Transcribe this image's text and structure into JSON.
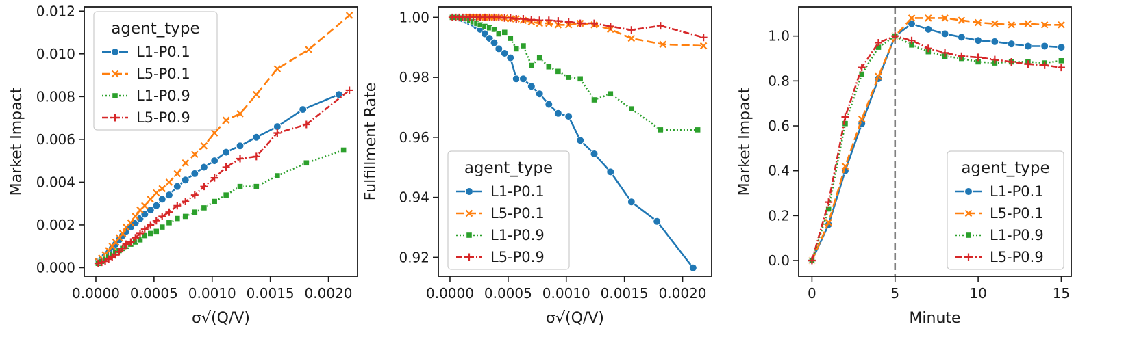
{
  "colors": {
    "L1-P0.1": "#1f77b4",
    "L5-P0.1": "#ff7f0e",
    "L1-P0.9": "#2ca02c",
    "L5-P0.9": "#d62728"
  },
  "chart_data": [
    {
      "type": "line",
      "ylabel": "Market Impact",
      "xlabel": "σ√(Q/V)",
      "xlim": [
        -0.0001,
        0.00225
      ],
      "ylim": [
        -0.0004,
        0.0122
      ],
      "xticks": [
        0.0,
        0.0005,
        0.001,
        0.0015,
        0.002
      ],
      "xtick_labels": [
        "0.0000",
        "0.0005",
        "0.0010",
        "0.0015",
        "0.0020"
      ],
      "yticks": [
        0.0,
        0.002,
        0.004,
        0.006,
        0.008,
        0.01,
        0.012
      ],
      "ytick_labels": [
        "0.000",
        "0.002",
        "0.004",
        "0.006",
        "0.008",
        "0.010",
        "0.012"
      ],
      "legend": {
        "title": "agent_type",
        "position": "upper-left"
      },
      "series": [
        {
          "name": "L1-P0.1",
          "marker": "circle",
          "dash": "solid",
          "x": [
            2e-05,
            5e-05,
            8e-05,
            0.00011,
            0.00014,
            0.00017,
            0.0002,
            0.00023,
            0.00026,
            0.0003,
            0.00034,
            0.00038,
            0.00042,
            0.00047,
            0.00052,
            0.00057,
            0.00063,
            0.0007,
            0.00077,
            0.00085,
            0.00093,
            0.00102,
            0.00112,
            0.00124,
            0.00138,
            0.00156,
            0.00178,
            0.00209
          ],
          "y": [
            0.0003,
            0.0004,
            0.00055,
            0.0007,
            0.0009,
            0.0011,
            0.0013,
            0.0015,
            0.0017,
            0.0019,
            0.0021,
            0.0023,
            0.0025,
            0.0027,
            0.0029,
            0.0032,
            0.0034,
            0.0038,
            0.0041,
            0.0044,
            0.0047,
            0.005,
            0.0054,
            0.0057,
            0.0061,
            0.0066,
            0.0074,
            0.0081
          ]
        },
        {
          "name": "L5-P0.1",
          "marker": "x",
          "dash": "dashed",
          "x": [
            2e-05,
            5e-05,
            8e-05,
            0.00011,
            0.00014,
            0.00017,
            0.0002,
            0.00023,
            0.00026,
            0.0003,
            0.00034,
            0.00038,
            0.00042,
            0.00047,
            0.00052,
            0.00057,
            0.00063,
            0.0007,
            0.00077,
            0.00085,
            0.00093,
            0.00102,
            0.00112,
            0.00124,
            0.00138,
            0.00156,
            0.00183,
            0.00218
          ],
          "y": [
            0.0003,
            0.00045,
            0.0006,
            0.0008,
            0.001,
            0.0012,
            0.0014,
            0.0016,
            0.0019,
            0.0021,
            0.0024,
            0.0027,
            0.0029,
            0.0032,
            0.0035,
            0.0037,
            0.004,
            0.0044,
            0.0049,
            0.0053,
            0.0057,
            0.0063,
            0.0069,
            0.0072,
            0.0081,
            0.0093,
            0.0102,
            0.0118
          ]
        },
        {
          "name": "L1-P0.9",
          "marker": "square",
          "dash": "dotted",
          "x": [
            2e-05,
            5e-05,
            8e-05,
            0.00011,
            0.00014,
            0.00017,
            0.0002,
            0.00023,
            0.00026,
            0.0003,
            0.00034,
            0.00038,
            0.00042,
            0.00047,
            0.00052,
            0.00057,
            0.00063,
            0.0007,
            0.00077,
            0.00085,
            0.00093,
            0.00102,
            0.00112,
            0.00124,
            0.00138,
            0.00156,
            0.00181,
            0.00213
          ],
          "y": [
            0.0002,
            0.0003,
            0.0004,
            0.0005,
            0.0006,
            0.0007,
            0.0008,
            0.0009,
            0.001,
            0.0011,
            0.0012,
            0.0013,
            0.0015,
            0.0016,
            0.0017,
            0.0019,
            0.0021,
            0.0023,
            0.0024,
            0.0026,
            0.0028,
            0.0031,
            0.0034,
            0.0038,
            0.0038,
            0.0043,
            0.0049,
            0.0055
          ]
        },
        {
          "name": "L5-P0.9",
          "marker": "plus",
          "dash": "dashdot",
          "x": [
            2e-05,
            5e-05,
            8e-05,
            0.00011,
            0.00014,
            0.00017,
            0.0002,
            0.00023,
            0.00026,
            0.0003,
            0.00034,
            0.00038,
            0.00042,
            0.00047,
            0.00052,
            0.00057,
            0.00063,
            0.0007,
            0.00077,
            0.00085,
            0.00093,
            0.00102,
            0.00112,
            0.00124,
            0.00138,
            0.00156,
            0.00181,
            0.00218
          ],
          "y": [
            0.0002,
            0.00025,
            0.0003,
            0.0004,
            0.0005,
            0.0006,
            0.00075,
            0.0009,
            0.0011,
            0.0012,
            0.0014,
            0.0016,
            0.0018,
            0.002,
            0.0022,
            0.0024,
            0.0026,
            0.0029,
            0.0031,
            0.0034,
            0.0038,
            0.0042,
            0.0047,
            0.0051,
            0.0052,
            0.0063,
            0.0067,
            0.0083
          ]
        }
      ]
    },
    {
      "type": "line",
      "ylabel": "Fulfillment Rate",
      "xlabel": "σ√(Q/V)",
      "xlim": [
        -0.0001,
        0.00225
      ],
      "ylim": [
        0.9137,
        1.0035
      ],
      "xticks": [
        0.0,
        0.0005,
        0.001,
        0.0015,
        0.002
      ],
      "xtick_labels": [
        "0.0000",
        "0.0005",
        "0.0010",
        "0.0015",
        "0.0020"
      ],
      "yticks": [
        0.92,
        0.94,
        0.96,
        0.98,
        1.0
      ],
      "ytick_labels": [
        "0.92",
        "0.94",
        "0.96",
        "0.98",
        "1.00"
      ],
      "legend": {
        "title": "agent_type",
        "position": "lower-left"
      },
      "series": [
        {
          "name": "L1-P0.1",
          "marker": "circle",
          "dash": "solid",
          "x": [
            2e-05,
            5e-05,
            8e-05,
            0.00011,
            0.00014,
            0.00017,
            0.0002,
            0.00023,
            0.00026,
            0.0003,
            0.00034,
            0.00038,
            0.00042,
            0.00047,
            0.00052,
            0.00057,
            0.00063,
            0.0007,
            0.00077,
            0.00085,
            0.00093,
            0.00102,
            0.00112,
            0.00124,
            0.00138,
            0.00156,
            0.00178,
            0.00209
          ],
          "y": [
            1.0,
            1.0,
            0.9998,
            0.9995,
            0.999,
            0.9985,
            0.998,
            0.997,
            0.996,
            0.9945,
            0.993,
            0.9915,
            0.9895,
            0.988,
            0.9865,
            0.9795,
            0.9795,
            0.977,
            0.9745,
            0.971,
            0.968,
            0.967,
            0.959,
            0.9545,
            0.9485,
            0.9385,
            0.932,
            0.9165
          ]
        },
        {
          "name": "L5-P0.1",
          "marker": "x",
          "dash": "dashed",
          "x": [
            2e-05,
            5e-05,
            8e-05,
            0.00011,
            0.00014,
            0.00017,
            0.0002,
            0.00023,
            0.00026,
            0.0003,
            0.00034,
            0.00038,
            0.00042,
            0.00047,
            0.00052,
            0.00057,
            0.00063,
            0.0007,
            0.00077,
            0.00085,
            0.00093,
            0.00102,
            0.00112,
            0.00124,
            0.00138,
            0.00156,
            0.00183,
            0.00218
          ],
          "y": [
            1.0,
            1.0,
            1.0,
            1.0,
            1.0,
            1.0,
            1.0,
            1.0,
            1.0,
            1.0,
            1.0,
            1.0,
            1.0,
            0.9998,
            0.9995,
            0.9995,
            0.999,
            0.9985,
            0.998,
            0.998,
            0.9975,
            0.9975,
            0.998,
            0.9975,
            0.996,
            0.993,
            0.991,
            0.9905
          ]
        },
        {
          "name": "L1-P0.9",
          "marker": "square",
          "dash": "dotted",
          "x": [
            2e-05,
            5e-05,
            8e-05,
            0.00011,
            0.00014,
            0.00017,
            0.0002,
            0.00023,
            0.00026,
            0.0003,
            0.00034,
            0.00038,
            0.00042,
            0.00047,
            0.00052,
            0.00057,
            0.00063,
            0.0007,
            0.00077,
            0.00085,
            0.00093,
            0.00102,
            0.00112,
            0.00124,
            0.00138,
            0.00156,
            0.00181,
            0.00213
          ],
          "y": [
            1.0,
            1.0,
            1.0,
            0.9998,
            0.9995,
            0.999,
            0.9985,
            0.998,
            0.9975,
            0.997,
            0.9965,
            0.996,
            0.9945,
            0.995,
            0.993,
            0.9895,
            0.9905,
            0.984,
            0.9865,
            0.9835,
            0.982,
            0.98,
            0.9795,
            0.9725,
            0.9745,
            0.9695,
            0.9625,
            0.9625
          ]
        },
        {
          "name": "L5-P0.9",
          "marker": "plus",
          "dash": "dashdot",
          "x": [
            2e-05,
            5e-05,
            8e-05,
            0.00011,
            0.00014,
            0.00017,
            0.0002,
            0.00023,
            0.00026,
            0.0003,
            0.00034,
            0.00038,
            0.00042,
            0.00047,
            0.00052,
            0.00057,
            0.00063,
            0.0007,
            0.00077,
            0.00085,
            0.00093,
            0.00102,
            0.00112,
            0.00124,
            0.00138,
            0.00156,
            0.00181,
            0.00218
          ],
          "y": [
            1.0,
            1.0,
            1.0,
            1.0,
            1.0,
            1.0,
            1.0,
            1.0,
            1.0,
            1.0,
            1.0,
            1.0,
            1.0,
            0.9998,
            0.9998,
            0.9995,
            0.9995,
            0.9992,
            0.999,
            0.999,
            0.9988,
            0.9985,
            0.998,
            0.998,
            0.997,
            0.9958,
            0.9972,
            0.9933
          ]
        }
      ]
    },
    {
      "type": "line",
      "ylabel": "Market Impact",
      "xlabel": "Minute",
      "xlim": [
        -0.8,
        15.6
      ],
      "ylim": [
        -0.07,
        1.13
      ],
      "xticks": [
        0,
        5,
        10,
        15
      ],
      "xtick_labels": [
        "0",
        "5",
        "10",
        "15"
      ],
      "yticks": [
        0.0,
        0.2,
        0.4,
        0.6,
        0.8,
        1.0
      ],
      "ytick_labels": [
        "0.0",
        "0.2",
        "0.4",
        "0.6",
        "0.8",
        "1.0"
      ],
      "vline_x": 5,
      "legend": {
        "title": "agent_type",
        "position": "lower-right"
      },
      "series": [
        {
          "name": "L1-P0.1",
          "marker": "circle",
          "dash": "solid",
          "x": [
            0,
            1,
            2,
            3,
            4,
            5,
            6,
            7,
            8,
            9,
            10,
            11,
            12,
            13,
            14,
            15
          ],
          "y": [
            0.0,
            0.16,
            0.4,
            0.61,
            0.81,
            1.0,
            1.055,
            1.03,
            1.01,
            0.995,
            0.98,
            0.975,
            0.965,
            0.955,
            0.955,
            0.95
          ]
        },
        {
          "name": "L5-P0.1",
          "marker": "x",
          "dash": "dashed",
          "x": [
            0,
            1,
            2,
            3,
            4,
            5,
            6,
            7,
            8,
            9,
            10,
            11,
            12,
            13,
            14,
            15
          ],
          "y": [
            0.0,
            0.17,
            0.42,
            0.63,
            0.82,
            1.0,
            1.08,
            1.08,
            1.08,
            1.07,
            1.06,
            1.055,
            1.05,
            1.055,
            1.05,
            1.05
          ]
        },
        {
          "name": "L1-P0.9",
          "marker": "square",
          "dash": "dotted",
          "x": [
            0,
            1,
            2,
            3,
            4,
            5,
            6,
            7,
            8,
            9,
            10,
            11,
            12,
            13,
            14,
            15
          ],
          "y": [
            0.0,
            0.23,
            0.61,
            0.83,
            0.95,
            1.0,
            0.96,
            0.93,
            0.91,
            0.9,
            0.885,
            0.88,
            0.885,
            0.885,
            0.88,
            0.89
          ]
        },
        {
          "name": "L5-P0.9",
          "marker": "plus",
          "dash": "dashdot",
          "x": [
            0,
            1,
            2,
            3,
            4,
            5,
            6,
            7,
            8,
            9,
            10,
            11,
            12,
            13,
            14,
            15
          ],
          "y": [
            0.0,
            0.26,
            0.64,
            0.86,
            0.97,
            1.0,
            0.98,
            0.945,
            0.925,
            0.91,
            0.905,
            0.895,
            0.885,
            0.875,
            0.87,
            0.86
          ]
        }
      ]
    }
  ]
}
